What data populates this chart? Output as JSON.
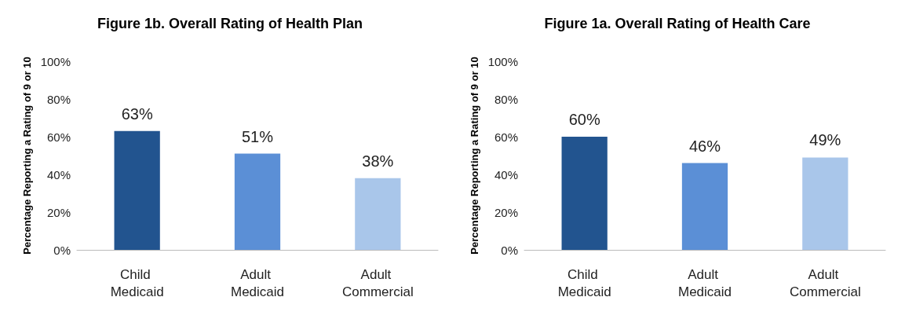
{
  "chart_data": [
    {
      "type": "bar",
      "title": "Figure 1b. Overall Rating of Health Plan",
      "ylabel": "Percentage Reporting a Rating of 9 or 10",
      "categories": [
        "Child Medicaid",
        "Adult Medicaid",
        "Adult Commercial"
      ],
      "values": [
        63,
        51,
        38
      ],
      "colors": [
        "#22548f",
        "#5b8fd6",
        "#a9c6ea"
      ],
      "value_labels": [
        "63%",
        "51%",
        "38%"
      ],
      "ylim": [
        0,
        100
      ],
      "yticks": [
        {
          "value": 0,
          "label": "0%"
        },
        {
          "value": 20,
          "label": "20%"
        },
        {
          "value": 40,
          "label": "40%"
        },
        {
          "value": 60,
          "label": "60%"
        },
        {
          "value": 80,
          "label": "80%"
        },
        {
          "value": 100,
          "label": "100%"
        }
      ],
      "grid": false
    },
    {
      "type": "bar",
      "title": "Figure 1a. Overall Rating of Health Care",
      "ylabel": "Percentage Reporting a Rating of 9 or 10",
      "categories": [
        "Child Medicaid",
        "Adult Medicaid",
        "Adult Commercial"
      ],
      "values": [
        60,
        46,
        49
      ],
      "colors": [
        "#22548f",
        "#5b8fd6",
        "#a9c6ea"
      ],
      "value_labels": [
        "60%",
        "46%",
        "49%"
      ],
      "ylim": [
        0,
        100
      ],
      "yticks": [
        {
          "value": 0,
          "label": "0%"
        },
        {
          "value": 20,
          "label": "20%"
        },
        {
          "value": 40,
          "label": "40%"
        },
        {
          "value": 60,
          "label": "60%"
        },
        {
          "value": 80,
          "label": "80%"
        },
        {
          "value": 100,
          "label": "100%"
        }
      ],
      "grid": false
    }
  ]
}
